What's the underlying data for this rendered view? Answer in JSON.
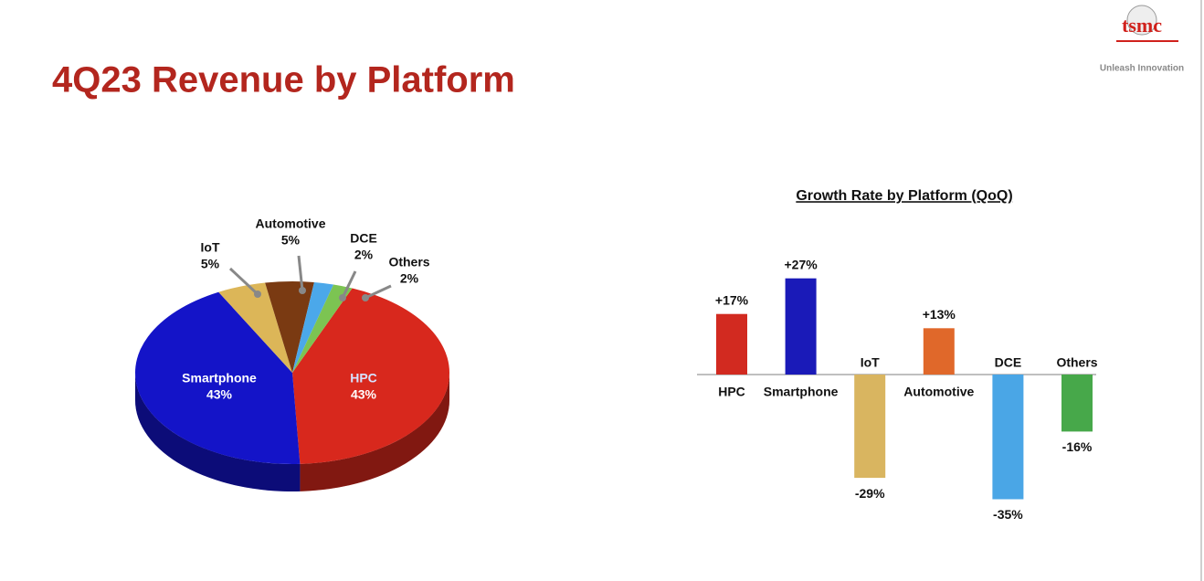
{
  "title": "4Q23 Revenue by Platform",
  "logo": {
    "text": "tsmc",
    "tagline": "Unleash Innovation"
  },
  "chart_data": [
    {
      "type": "pie",
      "categories": [
        "HPC",
        "Smartphone",
        "IoT",
        "Automotive",
        "DCE",
        "Others"
      ],
      "values": [
        43,
        43,
        5,
        5,
        2,
        2
      ],
      "value_labels": [
        "43%",
        "43%",
        "5%",
        "5%",
        "2%",
        "2%"
      ],
      "colors": [
        "#d8281d",
        "#1414c8",
        "#dcb658",
        "#7a3a12",
        "#4ba8ea",
        "#7cc452"
      ]
    },
    {
      "type": "bar",
      "title": "Growth Rate by Platform (QoQ)",
      "categories": [
        "HPC",
        "Smartphone",
        "IoT",
        "Automotive",
        "DCE",
        "Others"
      ],
      "values": [
        17,
        27,
        -29,
        13,
        -35,
        -16
      ],
      "value_labels": [
        "+17%",
        "+27%",
        "-29%",
        "+13%",
        "-35%",
        "-16%"
      ],
      "colors": [
        "#d22a20",
        "#1a1ab8",
        "#d9b560",
        "#e0682a",
        "#4aa6e6",
        "#47a84a"
      ]
    }
  ]
}
